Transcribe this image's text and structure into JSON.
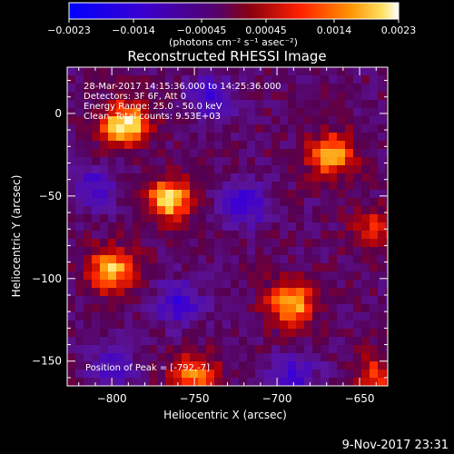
{
  "chart_data": {
    "type": "heatmap",
    "title": "Reconstructed RHESSI Image",
    "xlabel": "Heliocentric X (arcsec)",
    "ylabel": "Heliocentric Y (arcsec)",
    "xlim": [
      -827,
      -633
    ],
    "ylim": [
      -165,
      28
    ],
    "xticks": [
      -800,
      -750,
      -700,
      -650
    ],
    "xtick_labels": [
      "−800",
      "−750",
      "−700",
      "−650"
    ],
    "yticks": [
      0,
      -50,
      -100,
      -150
    ],
    "ytick_labels": [
      "0",
      "−50",
      "−100",
      "−150"
    ],
    "colorbar": {
      "min": -0.0023,
      "max": 0.0023,
      "ticks": [
        -0.0023,
        -0.0014,
        -0.00045,
        0.00045,
        0.0014,
        0.0023
      ],
      "tick_labels": [
        "−0.0023",
        "−0.0014",
        "−0.00045",
        "0.00045",
        "0.0014",
        "0.0023"
      ],
      "units": "(photons cm⁻² s⁻¹ asec⁻²)",
      "placement": "top"
    },
    "annotations": [
      "28-Mar-2017 14:15:36.000 to 14:25:36.000",
      "Detectors: 3F 6F, Att 0",
      "Energy Range: 25.0 - 50.0 keV",
      "Clean. Total counts: 9.53E+03"
    ],
    "peak_label": "Position of Peak = [-792,-7]",
    "hot_spots": [
      {
        "x": -792,
        "y": -7,
        "intensity": 1.0
      },
      {
        "x": -765,
        "y": -52,
        "intensity": 0.9
      },
      {
        "x": -692,
        "y": -115,
        "intensity": 0.85
      },
      {
        "x": -667,
        "y": -25,
        "intensity": 0.75
      },
      {
        "x": -800,
        "y": -95,
        "intensity": 0.85
      },
      {
        "x": -750,
        "y": -158,
        "intensity": 0.65
      },
      {
        "x": -640,
        "y": -160,
        "intensity": 0.5
      },
      {
        "x": -640,
        "y": -70,
        "intensity": 0.45
      }
    ],
    "cold_spots": [
      {
        "x": -720,
        "y": -55,
        "intensity": -0.6
      },
      {
        "x": -760,
        "y": -115,
        "intensity": -0.55
      },
      {
        "x": -810,
        "y": -45,
        "intensity": -0.45
      },
      {
        "x": -690,
        "y": -160,
        "intensity": -0.5
      },
      {
        "x": -740,
        "y": 10,
        "intensity": -0.5
      },
      {
        "x": -800,
        "y": -155,
        "intensity": -0.4
      }
    ]
  },
  "footer": {
    "timestamp": "9-Nov-2017 23:31"
  }
}
